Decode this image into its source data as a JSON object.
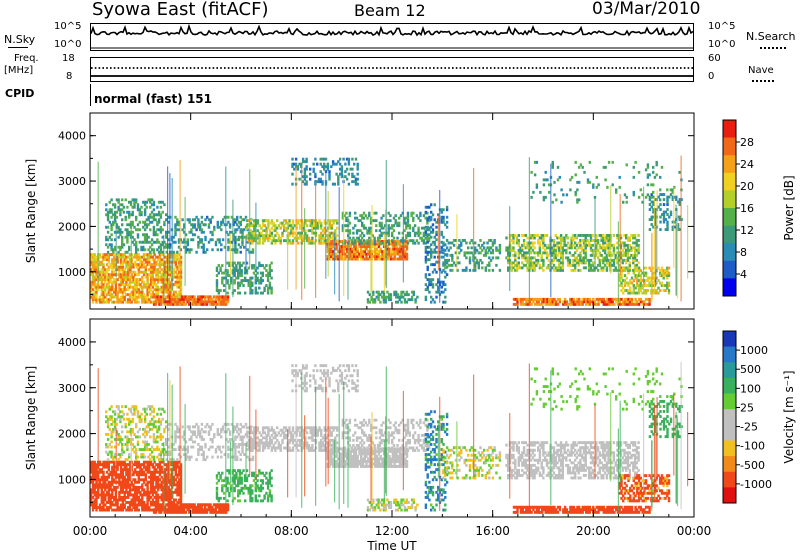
{
  "header": {
    "title": "Syowa East (fitACF)",
    "beam": "Beam 12",
    "date": "03/Mar/2010"
  },
  "noise_panel": {
    "left_label": "N.Sky",
    "right_label": "N.Search",
    "left_ticks": [
      "10^5",
      "10^0"
    ],
    "right_ticks": [
      "10^5",
      "10^0"
    ]
  },
  "freq_panel": {
    "left_label": "Freq.",
    "left_unit": "[MHz]",
    "right_label": "Nave",
    "left_ticks": [
      "18",
      "8"
    ],
    "right_ticks": [
      "60",
      "0"
    ]
  },
  "cpid_panel": {
    "label": "CPID",
    "mode_text": "normal (fast) 151"
  },
  "chart_data": [
    {
      "type": "heatmap",
      "name": "Power",
      "xlabel": "",
      "ylabel": "Slant Range [km]",
      "x_ticks": [
        "00:00",
        "04:00",
        "08:00",
        "12:00",
        "16:00",
        "20:00",
        "00:00"
      ],
      "xlim": [
        0,
        24
      ],
      "y_ticks": [
        "1000",
        "2000",
        "3000",
        "4000"
      ],
      "ylim": [
        180,
        4500
      ],
      "colorbar_label": "Power [dB]",
      "colorbar_ticks": [
        "28",
        "24",
        "20",
        "16",
        "12",
        "8",
        "4"
      ],
      "colorbar_colors": [
        "#0000ee",
        "#1e5cc8",
        "#2a8bb4",
        "#3c9a78",
        "#55b04a",
        "#b5cf2a",
        "#f0d020",
        "#f4a018",
        "#f06818",
        "#e81e10"
      ]
    },
    {
      "type": "heatmap",
      "name": "Velocity",
      "xlabel": "Time UT",
      "ylabel": "Slant Range [km]",
      "x_ticks": [
        "00:00",
        "04:00",
        "08:00",
        "12:00",
        "16:00",
        "20:00",
        "00:00"
      ],
      "xlim": [
        0,
        24
      ],
      "y_ticks": [
        "1000",
        "2000",
        "3000",
        "4000"
      ],
      "ylim": [
        180,
        4500
      ],
      "colorbar_label": "Velocity [m s⁻¹]",
      "colorbar_ticks": [
        "1000",
        "500",
        "100",
        "25",
        "-25",
        "-100",
        "-500",
        "-1000"
      ],
      "colorbar_colors": [
        "#1838b8",
        "#2878c8",
        "#2a9a9a",
        "#3ab05a",
        "#66cc33",
        "#c0c0c0",
        "#c0c0c0",
        "#f0c020",
        "#f08a18",
        "#f04818",
        "#e01010"
      ]
    }
  ]
}
